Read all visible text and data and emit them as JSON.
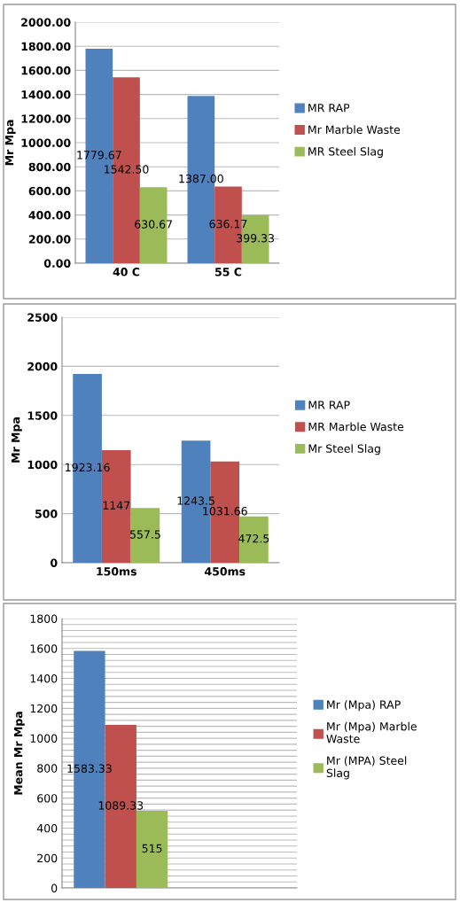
{
  "chart_data": [
    {
      "type": "bar",
      "ylabel": "Mr Mpa",
      "categories": [
        "40 C",
        "55 C"
      ],
      "ylim": [
        0,
        2000
      ],
      "yticks": [
        {
          "value": 0,
          "label": "0.00"
        },
        {
          "value": 200,
          "label": "200.00"
        },
        {
          "value": 400,
          "label": "400.00"
        },
        {
          "value": 600,
          "label": "600.00"
        },
        {
          "value": 800,
          "label": "800.00"
        },
        {
          "value": 1000,
          "label": "1000.00"
        },
        {
          "value": 1200,
          "label": "1200.00"
        },
        {
          "value": 1400,
          "label": "1400.00"
        },
        {
          "value": 1600,
          "label": "1600.00"
        },
        {
          "value": 1800,
          "label": "1800.00"
        },
        {
          "value": 2000,
          "label": "2000.00"
        }
      ],
      "grid": "y",
      "legend": "right",
      "series": [
        {
          "name": "MR RAP",
          "color": "#4f81bd",
          "values": [
            1779.67,
            1387.0
          ],
          "value_labels": [
            "1779.67",
            "1387.00"
          ]
        },
        {
          "name": "Mr Marble Waste",
          "color": "#c0504d",
          "values": [
            1542.5,
            636.17
          ],
          "value_labels": [
            "1542.50",
            "636.17"
          ]
        },
        {
          "name": "MR Steel Slag",
          "color": "#9bbb59",
          "values": [
            630.67,
            399.33
          ],
          "value_labels": [
            "630.67",
            "399.33"
          ]
        }
      ]
    },
    {
      "type": "bar",
      "ylabel": "Mr Mpa",
      "categories": [
        "150ms",
        "450ms"
      ],
      "ylim": [
        0,
        2500
      ],
      "yticks": [
        0,
        500,
        1000,
        1500,
        2000,
        2500
      ],
      "grid": "y",
      "legend": "right",
      "series": [
        {
          "name": "MR RAP",
          "color": "#4f81bd",
          "values": [
            1923.16,
            1243.5
          ],
          "value_labels": [
            "1923.16",
            "1243.5"
          ]
        },
        {
          "name": "MR Marble Waste",
          "color": "#c0504d",
          "values": [
            1147,
            1031.66
          ],
          "value_labels": [
            "1147",
            "1031.66"
          ]
        },
        {
          "name": "Mr Steel Slag",
          "color": "#9bbb59",
          "values": [
            557.5,
            472.5
          ],
          "value_labels": [
            "557.5",
            "472.5"
          ]
        }
      ]
    },
    {
      "type": "bar",
      "ylabel": "Mean Mr Mpa",
      "categories": [
        null,
        null
      ],
      "ylim": [
        0,
        1800
      ],
      "yticks": [
        0,
        {
          "value": 40,
          "label": null
        },
        {
          "value": 80,
          "label": null
        },
        {
          "value": 120,
          "label": null
        },
        {
          "value": 160,
          "label": null
        },
        200,
        {
          "value": 240,
          "label": null
        },
        {
          "value": 280,
          "label": null
        },
        {
          "value": 320,
          "label": null
        },
        {
          "value": 360,
          "label": null
        },
        400,
        {
          "value": 440,
          "label": null
        },
        {
          "value": 480,
          "label": null
        },
        {
          "value": 520,
          "label": null
        },
        {
          "value": 560,
          "label": null
        },
        600,
        {
          "value": 640,
          "label": null
        },
        {
          "value": 680,
          "label": null
        },
        {
          "value": 720,
          "label": null
        },
        {
          "value": 760,
          "label": null
        },
        800,
        {
          "value": 840,
          "label": null
        },
        {
          "value": 880,
          "label": null
        },
        {
          "value": 920,
          "label": null
        },
        {
          "value": 960,
          "label": null
        },
        1000,
        {
          "value": 1040,
          "label": null
        },
        {
          "value": 1080,
          "label": null
        },
        {
          "value": 1120,
          "label": null
        },
        {
          "value": 1160,
          "label": null
        },
        1200,
        {
          "value": 1240,
          "label": null
        },
        {
          "value": 1280,
          "label": null
        },
        {
          "value": 1320,
          "label": null
        },
        {
          "value": 1360,
          "label": null
        },
        1400,
        {
          "value": 1440,
          "label": null
        },
        {
          "value": 1480,
          "label": null
        },
        {
          "value": 1520,
          "label": null
        },
        {
          "value": 1560,
          "label": null
        },
        1600,
        {
          "value": 1640,
          "label": null
        },
        {
          "value": 1680,
          "label": null
        },
        {
          "value": 1720,
          "label": null
        },
        {
          "value": 1760,
          "label": null
        },
        1800
      ],
      "grid": "y",
      "legend": "right",
      "series": [
        {
          "name": "Mr (Mpa) RAP",
          "color": "#4f81bd",
          "values": [
            1583.33,
            null
          ],
          "value_labels": [
            "1583.33",
            null
          ]
        },
        {
          "name": "Mr (Mpa) Marble Waste",
          "color": "#c0504d",
          "values": [
            1089.33,
            null
          ],
          "value_labels": [
            "1089.33",
            null
          ]
        },
        {
          "name": "Mr (MPA) Steel Slag",
          "color": "#9bbb59",
          "values": [
            515,
            null
          ],
          "value_labels": [
            "515",
            null
          ]
        }
      ]
    }
  ]
}
